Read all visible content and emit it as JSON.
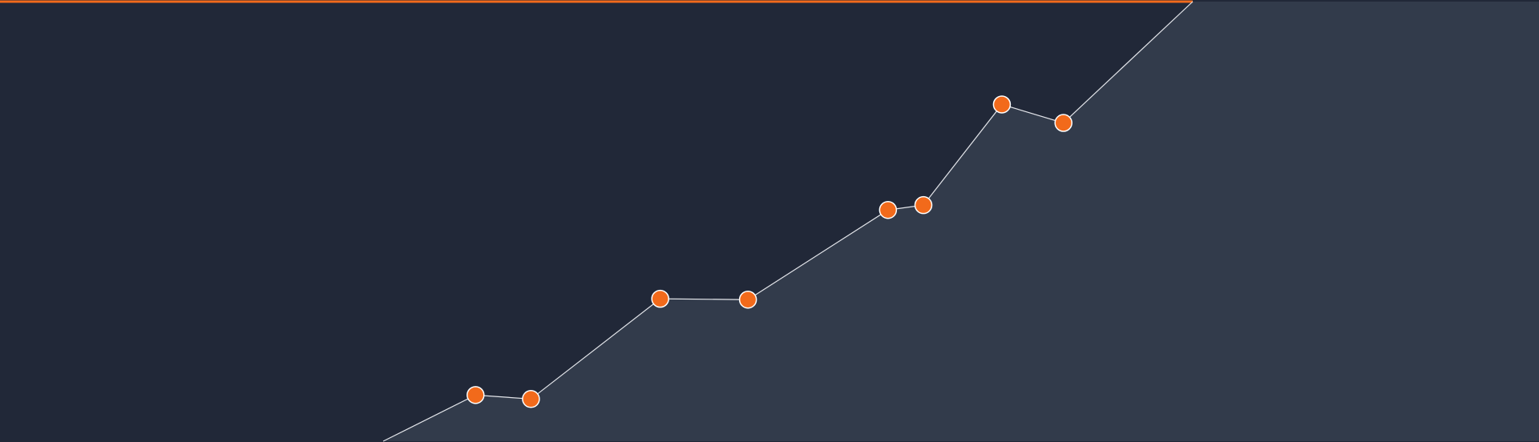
{
  "colors": {
    "background": "#212838",
    "area_fill": "#323b4b",
    "accent": "#f26a1b",
    "line": "#e3e5ea",
    "border": "#ffffff"
  },
  "chart_data": {
    "type": "line",
    "title": "",
    "xlabel": "",
    "ylabel": "",
    "xlim": [
      0,
      100
    ],
    "ylim": [
      0,
      100
    ],
    "grid": false,
    "legend": "none",
    "area_under_line": true,
    "top_accent_line": true,
    "series": [
      {
        "line_points": [
          {
            "x": 24.9,
            "y": 0
          },
          {
            "x": 30.9,
            "y": 10.5
          },
          {
            "x": 34.5,
            "y": 9.6
          },
          {
            "x": 42.9,
            "y": 32.4
          },
          {
            "x": 48.6,
            "y": 32.2
          },
          {
            "x": 57.7,
            "y": 52.6
          },
          {
            "x": 60.0,
            "y": 53.7
          },
          {
            "x": 65.1,
            "y": 76.6
          },
          {
            "x": 69.1,
            "y": 72.4
          },
          {
            "x": 77.5,
            "y": 100
          }
        ],
        "markers": [
          {
            "x": 30.9,
            "y": 10.5
          },
          {
            "x": 34.5,
            "y": 9.6
          },
          {
            "x": 42.9,
            "y": 32.4
          },
          {
            "x": 48.6,
            "y": 32.2
          },
          {
            "x": 57.7,
            "y": 52.6
          },
          {
            "x": 60.0,
            "y": 53.7
          },
          {
            "x": 65.1,
            "y": 76.6
          },
          {
            "x": 69.1,
            "y": 72.4
          }
        ]
      }
    ]
  }
}
